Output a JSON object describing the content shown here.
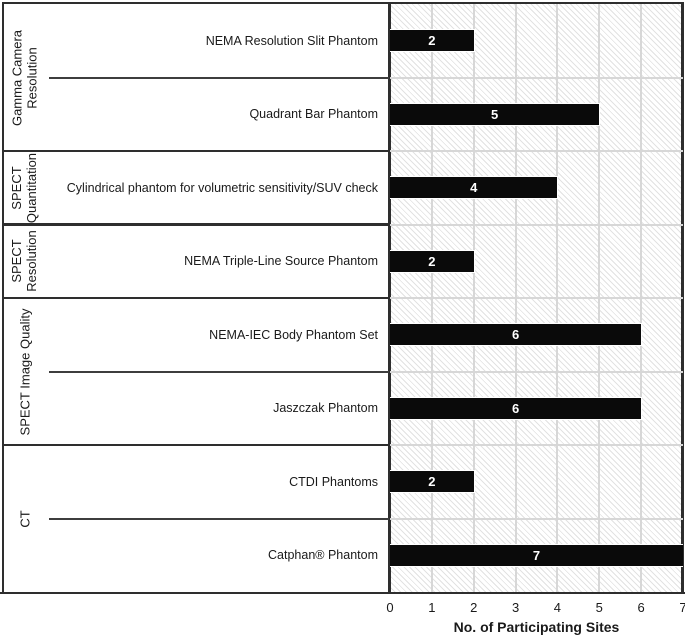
{
  "chart_data": {
    "type": "bar",
    "orientation": "horizontal",
    "title": "",
    "xlabel": "No. of Participating Sites",
    "ylabel": "",
    "xlim": [
      0,
      7
    ],
    "xticks": [
      "0",
      "1",
      "2",
      "3",
      "4",
      "5",
      "6",
      "7"
    ],
    "grid": true,
    "plot_background": "diagonal-hatch",
    "legend": "none",
    "groups": [
      {
        "label": "Gamma Camera Resolution",
        "label_lines": [
          "Gamma Camera",
          "Resolution"
        ],
        "rows": [
          {
            "label": "NEMA Resolution Slit Phantom",
            "value": 2
          },
          {
            "label": "Quadrant Bar Phantom",
            "value": 5
          }
        ]
      },
      {
        "label": "SPECT Quantitation",
        "label_lines": [
          "SPECT",
          "Quantitation"
        ],
        "rows": [
          {
            "label": "Cylindrical phantom for volumetric sensitivity/SUV check",
            "value": 4
          }
        ]
      },
      {
        "label": "SPECT Resolution",
        "label_lines": [
          "SPECT",
          "Resolution"
        ],
        "rows": [
          {
            "label": "NEMA Triple-Line Source Phantom",
            "value": 2
          }
        ]
      },
      {
        "label": "SPECT Image Quality",
        "label_lines": [
          "SPECT Image Quality"
        ],
        "rows": [
          {
            "label": "NEMA-IEC Body Phantom Set",
            "value": 6
          },
          {
            "label": "Jaszczak Phantom",
            "value": 6
          }
        ]
      },
      {
        "label": "CT",
        "label_lines": [
          "CT"
        ],
        "rows": [
          {
            "label": "CTDI Phantoms",
            "value": 2
          },
          {
            "label": "Catphan® Phantom",
            "value": 7
          }
        ]
      }
    ],
    "colors": {
      "bar": "#0a0a0a",
      "bar_label": "#ffffff",
      "text": "#1a1a1a",
      "spine": "#2e2e2e",
      "gridline": "#d7d7d7",
      "hatch_line": "#e2e2e2"
    }
  }
}
